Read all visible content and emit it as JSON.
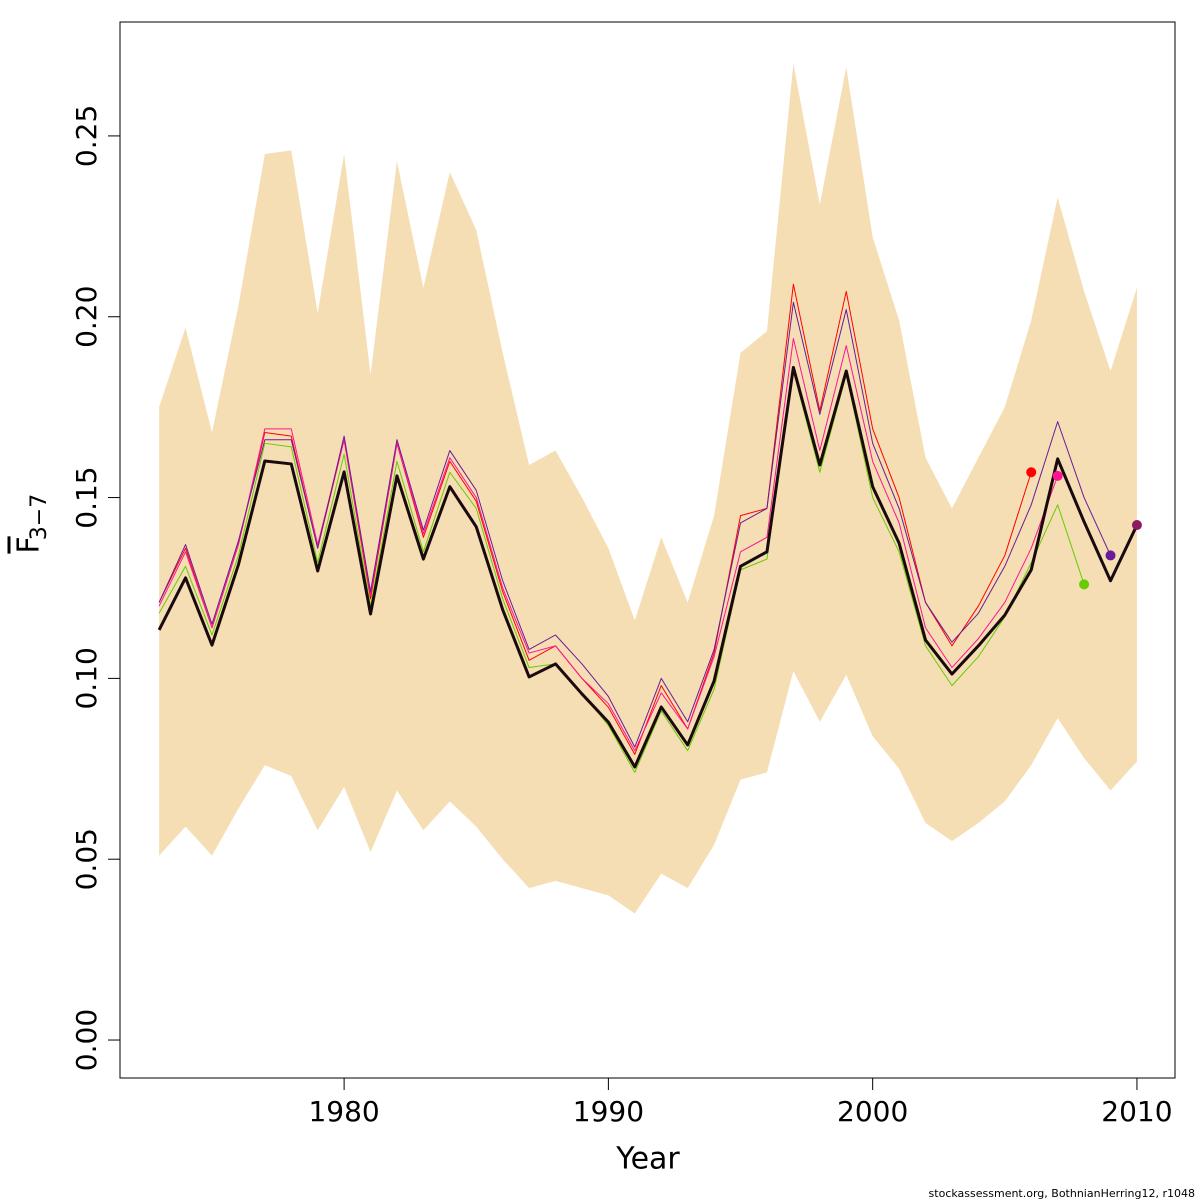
{
  "chart_data": {
    "type": "line",
    "xlabel": "Year",
    "ylabel": "F",
    "ylabel_subscript": "3−7",
    "footer": "stockassessment.org, BothnianHerring12, r1048",
    "x": [
      1973,
      1974,
      1975,
      1976,
      1977,
      1978,
      1979,
      1980,
      1981,
      1982,
      1983,
      1984,
      1985,
      1986,
      1987,
      1988,
      1989,
      1990,
      1991,
      1992,
      1993,
      1994,
      1995,
      1996,
      1997,
      1998,
      1999,
      2000,
      2001,
      2002,
      2003,
      2004,
      2005,
      2006,
      2007,
      2008,
      2009,
      2010
    ],
    "band": {
      "color": "#f5deb3",
      "upper": [
        0.175,
        0.197,
        0.168,
        0.203,
        0.245,
        0.246,
        0.201,
        0.245,
        0.184,
        0.243,
        0.208,
        0.24,
        0.224,
        0.19,
        0.159,
        0.163,
        0.15,
        0.136,
        0.116,
        0.139,
        0.121,
        0.145,
        0.19,
        0.196,
        0.27,
        0.231,
        0.269,
        0.222,
        0.199,
        0.161,
        0.147,
        0.161,
        0.175,
        0.199,
        0.233,
        0.207,
        0.185,
        0.208
      ],
      "lower": [
        0.051,
        0.059,
        0.051,
        0.064,
        0.076,
        0.073,
        0.058,
        0.07,
        0.052,
        0.069,
        0.058,
        0.066,
        0.059,
        0.05,
        0.042,
        0.044,
        0.042,
        0.04,
        0.035,
        0.046,
        0.042,
        0.054,
        0.072,
        0.074,
        0.102,
        0.088,
        0.101,
        0.084,
        0.075,
        0.06,
        0.055,
        0.06,
        0.066,
        0.076,
        0.089,
        0.078,
        0.069,
        0.077
      ]
    },
    "series": [
      {
        "color": "#ff0000",
        "point_color": "#ff0000",
        "width": 1,
        "values": [
          0.121,
          0.136,
          0.114,
          0.137,
          0.168,
          0.167,
          0.136,
          0.166,
          0.122,
          0.165,
          0.139,
          0.16,
          0.149,
          0.124,
          0.105,
          0.109,
          0.1,
          0.092,
          0.079,
          0.098,
          0.086,
          0.107,
          0.145,
          0.147,
          0.209,
          0.174,
          0.207,
          0.169,
          0.15,
          0.121,
          0.109,
          0.12,
          0.134,
          0.157,
          null,
          null,
          null,
          null
        ]
      },
      {
        "color": "#ff1493",
        "point_color": "#ff1493",
        "width": 1,
        "values": [
          0.12,
          0.135,
          0.114,
          0.137,
          0.169,
          0.169,
          0.137,
          0.166,
          0.123,
          0.165,
          0.14,
          0.161,
          0.15,
          0.125,
          0.107,
          0.109,
          0.1,
          0.093,
          0.08,
          0.096,
          0.086,
          0.106,
          0.135,
          0.139,
          0.194,
          0.163,
          0.192,
          0.16,
          0.143,
          0.114,
          0.103,
          0.111,
          0.121,
          0.136,
          0.156,
          null,
          null,
          null
        ]
      },
      {
        "color": "#66cc00",
        "point_color": "#66cc00",
        "width": 1,
        "values": [
          0.118,
          0.131,
          0.112,
          0.134,
          0.165,
          0.164,
          0.132,
          0.162,
          0.12,
          0.16,
          0.135,
          0.157,
          0.147,
          0.122,
          0.103,
          0.104,
          0.096,
          0.087,
          0.074,
          0.091,
          0.08,
          0.097,
          0.13,
          0.133,
          0.185,
          0.157,
          0.184,
          0.15,
          0.135,
          0.109,
          0.098,
          0.106,
          0.117,
          0.132,
          0.148,
          0.126,
          null,
          null
        ]
      },
      {
        "color": "#6a1b9a",
        "point_color": "#6a1b9a",
        "width": 1,
        "values": [
          0.121,
          0.137,
          0.115,
          0.138,
          0.166,
          0.166,
          0.136,
          0.167,
          0.124,
          0.166,
          0.141,
          0.163,
          0.152,
          0.127,
          0.108,
          0.112,
          0.104,
          0.095,
          0.081,
          0.1,
          0.088,
          0.108,
          0.143,
          0.147,
          0.204,
          0.173,
          0.202,
          0.165,
          0.147,
          0.121,
          0.11,
          0.118,
          0.131,
          0.148,
          0.171,
          0.15,
          0.134,
          null
        ]
      },
      {
        "color": "#1a0a0f",
        "point_color": "#8b1a5e",
        "width": 3,
        "values": [
          0.1134,
          0.1278,
          0.1092,
          0.1314,
          0.1601,
          0.1593,
          0.1297,
          0.1571,
          0.1178,
          0.156,
          0.133,
          0.153,
          0.1419,
          0.119,
          0.1004,
          0.104,
          0.0957,
          0.0879,
          0.0755,
          0.0921,
          0.0816,
          0.0993,
          0.131,
          0.135,
          0.186,
          0.159,
          0.185,
          0.153,
          0.1374,
          0.1106,
          0.1012,
          0.109,
          0.1175,
          0.13,
          0.1607,
          0.1433,
          0.127,
          0.1424
        ]
      }
    ],
    "xlim": [
      1971.52,
      2011.44
    ],
    "ylim": [
      -0.0105,
      0.2815
    ],
    "xticks": [
      1980,
      1990,
      2000,
      2010
    ],
    "yticks": [
      {
        "value": 0,
        "label": "0.00"
      },
      0.05,
      {
        "value": 0.1,
        "label": "0.10"
      },
      0.15,
      {
        "value": 0.2,
        "label": "0.20"
      },
      0.25
    ]
  }
}
